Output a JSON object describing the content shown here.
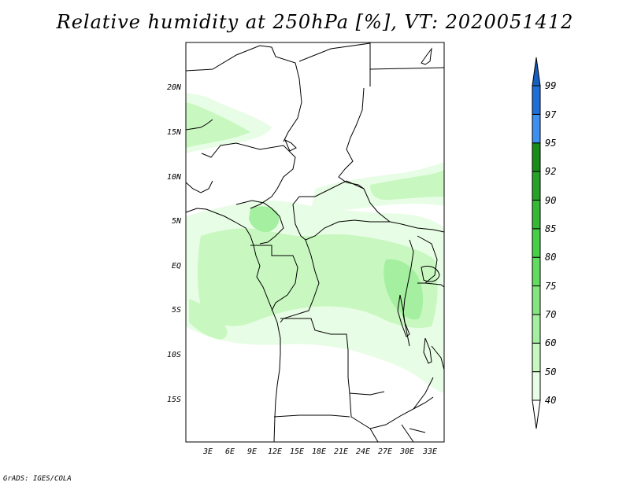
{
  "title": "Relative humidity at 250hPa [%], VT: 2020051412",
  "credit": "GrADS: IGES/COLA",
  "map": {
    "lat_labels": [
      "20N",
      "15N",
      "10N",
      "5N",
      "EQ",
      "5S",
      "10S",
      "15S"
    ],
    "lon_labels": [
      "3E",
      "6E",
      "9E",
      "12E",
      "15E",
      "18E",
      "21E",
      "24E",
      "27E",
      "30E",
      "33E"
    ]
  },
  "colorbar": {
    "labels": [
      "40",
      "50",
      "60",
      "70",
      "75",
      "80",
      "85",
      "90",
      "92",
      "95",
      "97",
      "99"
    ],
    "colors": [
      "#ffffff",
      "#e8fde5",
      "#c8f7c0",
      "#a5f0a0",
      "#85e67f",
      "#62dc5f",
      "#48cf48",
      "#35b935",
      "#27a227",
      "#188c18",
      "#3d90ef",
      "#1f6fd8",
      "#155fc0"
    ]
  },
  "colors": {
    "coast": "#000000",
    "moist_light": "#e8fde5",
    "moist_mid": "#c8f7c0",
    "moist_dark": "#a5f0a0"
  }
}
